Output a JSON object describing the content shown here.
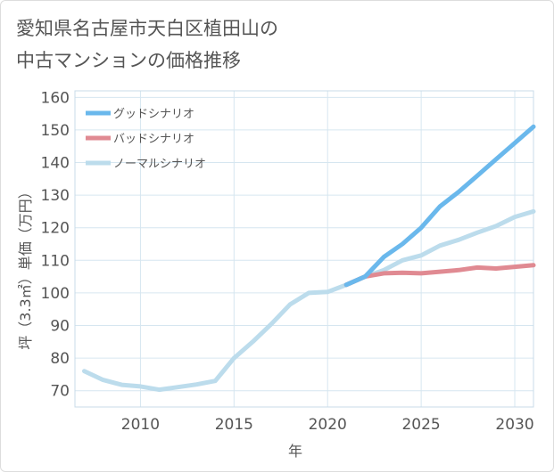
{
  "title_lines": [
    "愛知県名古屋市天白区植田山の",
    "中古マンションの価格推移"
  ],
  "chart_data": {
    "type": "line",
    "title": "愛知県名古屋市天白区植田山の中古マンションの価格推移",
    "xlabel": "年",
    "ylabel": "坪（3.3㎡）単価（万円）",
    "xlim": [
      2006.5,
      2031
    ],
    "ylim": [
      65,
      162
    ],
    "x_ticks": [
      2010,
      2015,
      2020,
      2025,
      2030
    ],
    "y_ticks": [
      70,
      80,
      90,
      100,
      110,
      120,
      130,
      140,
      150,
      160
    ],
    "grid": true,
    "legend_position": "top-left",
    "series": [
      {
        "name": "グッドシナリオ",
        "color": "#6ab8ec",
        "x": [
          2021,
          2022,
          2023,
          2024,
          2025,
          2026,
          2027,
          2028,
          2029,
          2030,
          2031
        ],
        "y": [
          102.5,
          105,
          111,
          115,
          120,
          126.5,
          131,
          136,
          141,
          146,
          151
        ]
      },
      {
        "name": "バッドシナリオ",
        "color": "#e08a92",
        "x": [
          2021,
          2022,
          2023,
          2024,
          2025,
          2026,
          2027,
          2028,
          2029,
          2030,
          2031
        ],
        "y": [
          102.5,
          105,
          106,
          106.2,
          106,
          106.5,
          107,
          107.8,
          107.5,
          108,
          108.5
        ]
      },
      {
        "name": "ノーマルシナリオ",
        "color": "#bcdcec",
        "x": [
          2007,
          2008,
          2009,
          2010,
          2011,
          2012,
          2013,
          2014,
          2015,
          2016,
          2017,
          2018,
          2019,
          2020,
          2021,
          2022,
          2023,
          2024,
          2025,
          2026,
          2027,
          2028,
          2029,
          2030,
          2031
        ],
        "y": [
          76,
          73.3,
          71.8,
          71.3,
          70.3,
          71.1,
          71.9,
          73,
          80,
          85,
          90.5,
          96.5,
          100,
          100.3,
          102.5,
          105,
          107,
          110,
          111.5,
          114.5,
          116.3,
          118.5,
          120.5,
          123.3,
          125
        ]
      }
    ]
  }
}
